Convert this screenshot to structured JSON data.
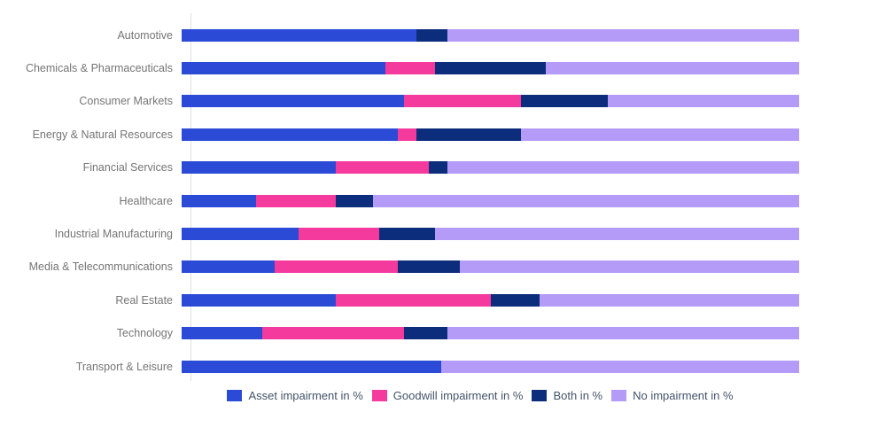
{
  "chart_data": {
    "type": "bar",
    "orientation": "horizontal",
    "stacked": true,
    "unit": "%",
    "xlim": [
      0,
      100
    ],
    "grid": false,
    "legend_position": "bottom",
    "categories": [
      "Automotive",
      "Chemicals & Pharmaceuticals",
      "Consumer Markets",
      "Energy & Natural Resources",
      "Financial Services",
      "Healthcare",
      "Industrial Manufacturing",
      "Media & Telecommunications",
      "Real Estate",
      "Technology",
      "Transport & Leisure"
    ],
    "series": [
      {
        "name": "Asset impairment in %",
        "color": "#2b4bd7",
        "values": [
          38,
          33,
          36,
          35,
          25,
          12,
          19,
          15,
          25,
          13,
          42
        ]
      },
      {
        "name": "Goodwill impairment in %",
        "color": "#f43a9d",
        "values": [
          0,
          8,
          19,
          3,
          15,
          13,
          13,
          20,
          25,
          23,
          0
        ]
      },
      {
        "name": "Both in %",
        "color": "#0b2d7b",
        "values": [
          5,
          18,
          14,
          17,
          3,
          6,
          9,
          10,
          8,
          7,
          0
        ]
      },
      {
        "name": "No impairment in %",
        "color": "#b49bf7",
        "values": [
          57,
          41,
          31,
          45,
          57,
          69,
          59,
          55,
          42,
          57,
          58
        ]
      }
    ]
  },
  "colors": {
    "background": "#ffffff",
    "axis_line": "#e0e0e0",
    "category_label_text": "#757575",
    "legend_text": "#44546a"
  }
}
